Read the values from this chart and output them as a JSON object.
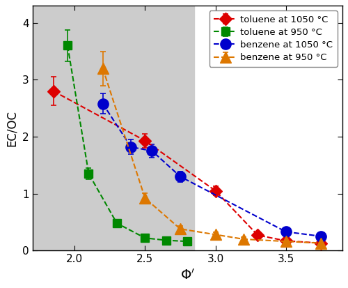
{
  "toluene_1050_x": [
    1.85,
    2.5,
    3.0,
    3.3,
    3.5,
    3.75
  ],
  "toluene_1050_y": [
    2.8,
    1.93,
    1.05,
    0.27,
    0.17,
    0.13
  ],
  "toluene_1050_yerr": [
    0.25,
    0.12,
    0.08,
    0.04,
    0.03,
    0.03
  ],
  "toluene_950_x": [
    1.95,
    2.1,
    2.3,
    2.5,
    2.65,
    2.8
  ],
  "toluene_950_y": [
    3.6,
    1.35,
    0.48,
    0.22,
    0.18,
    0.16
  ],
  "toluene_950_yerr": [
    0.28,
    0.1,
    0.05,
    0.03,
    0.03,
    0.03
  ],
  "benzene_1050_x": [
    2.2,
    2.4,
    2.55,
    2.75,
    3.5,
    3.75
  ],
  "benzene_1050_y": [
    2.58,
    1.82,
    1.75,
    1.3,
    0.33,
    0.25
  ],
  "benzene_1050_yerr": [
    0.18,
    0.13,
    0.12,
    0.09,
    0.05,
    0.04
  ],
  "benzene_950_x": [
    2.2,
    2.5,
    2.75,
    3.0,
    3.2,
    3.5,
    3.75
  ],
  "benzene_950_y": [
    3.2,
    0.92,
    0.38,
    0.28,
    0.2,
    0.16,
    0.13
  ],
  "benzene_950_yerr": [
    0.3,
    0.09,
    0.05,
    0.04,
    0.03,
    0.03,
    0.03
  ],
  "shade_xmin": 1.7,
  "shade_xmax": 2.85,
  "toluene_1050_color": "#dd0000",
  "toluene_950_color": "#008800",
  "benzene_1050_color": "#0000cc",
  "benzene_950_color": "#dd7700",
  "xlabel": "$\\Phi'$",
  "ylabel": "EC/OC",
  "xlim": [
    1.7,
    3.9
  ],
  "ylim": [
    0.0,
    4.3
  ],
  "xticks": [
    2.0,
    2.5,
    3.0,
    3.5
  ],
  "yticks": [
    0,
    1,
    2,
    3,
    4
  ],
  "legend_labels": [
    "toluene at 1050 °C",
    "toluene at 950 °C",
    "benzene at 1050 °C",
    "benzene at 950 °C"
  ],
  "background_color": "#ffffff",
  "shaded_color": "#cccccc"
}
